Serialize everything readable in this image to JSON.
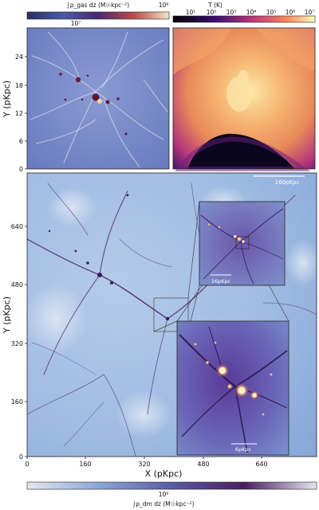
{
  "top_left_colorbar": {
    "label": "∫ρ_gas dz (M☉kpc⁻²)",
    "ticks": [
      "10⁷",
      "10⁸"
    ]
  },
  "top_right_colorbar": {
    "label": "T (K)",
    "ticks": [
      "10¹",
      "10²",
      "10³",
      "10⁴",
      "10⁵",
      "10⁶",
      "10⁷"
    ]
  },
  "top_left_panel": {
    "ylabel": "Y (pKpc)",
    "yticks": [
      "0",
      "6",
      "12",
      "18",
      "24"
    ]
  },
  "main_panel": {
    "xlabel": "X (pKpc)",
    "ylabel": "Y (pKpc)",
    "xticks": [
      "0",
      "160",
      "320",
      "480",
      "640"
    ],
    "yticks": [
      "0",
      "160",
      "320",
      "480",
      "640"
    ],
    "scalebar": "160pKpc"
  },
  "inset1": {
    "scalebar": "16pKpc"
  },
  "inset2": {
    "scalebar": "6pKpc"
  },
  "bottom_colorbar": {
    "label": "∫ρ_dm dz (M☉kpc⁻²)",
    "ticks": [
      "10⁸"
    ]
  },
  "colors": {
    "gas_bg": "#7386c6",
    "temp_hot": "#f6b572",
    "dm_bg": "#a6c0e4",
    "filament": "#4a2a6e"
  }
}
